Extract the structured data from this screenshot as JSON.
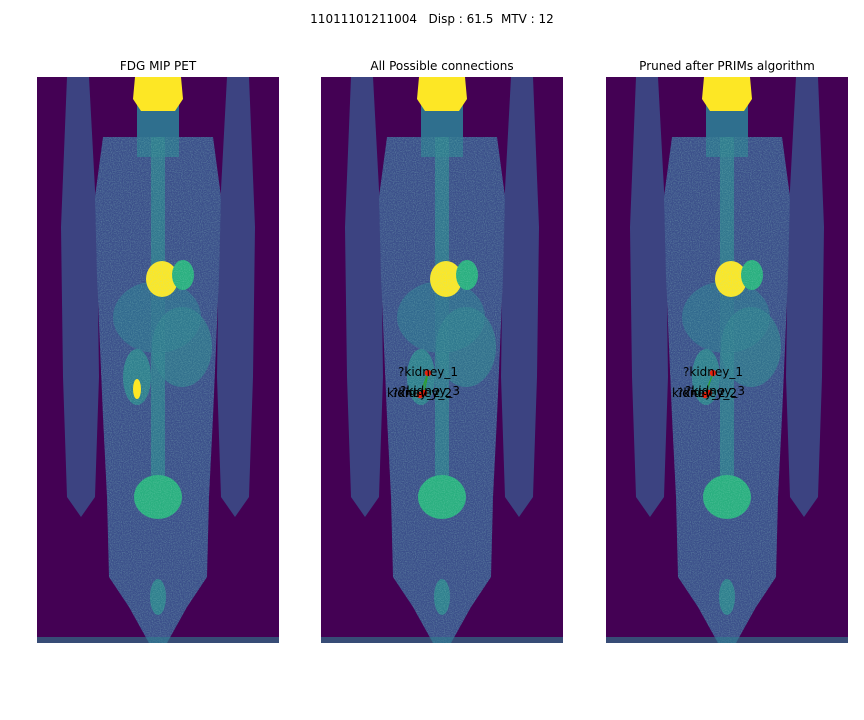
{
  "figure": {
    "suptitle": "11011101211004   Disp : 61.5  MTV : 12"
  },
  "panels": [
    {
      "title": "FDG MIP PET",
      "show_graph": false
    },
    {
      "title": "All Possible connections",
      "show_graph": true
    },
    {
      "title": "Pruned after PRIMs algorithm",
      "show_graph": true
    }
  ],
  "graph": {
    "node_labels": {
      "kidney_1": "?kidney_1",
      "kidney_2": "kidney_2",
      "kidney_3": "?kidney_3",
      "overlap": "?kidney_2"
    }
  },
  "colors": {
    "background": "#440154",
    "body_low": "#3b4f8a",
    "body_mid": "#2f7f8e",
    "body_high": "#29af7f",
    "hot": "#fde725",
    "node": "#e8220e",
    "edge": "#2ca02c"
  }
}
